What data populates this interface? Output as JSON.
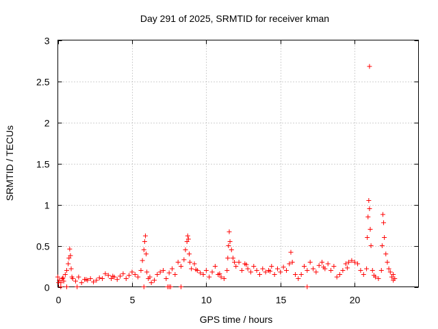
{
  "chart_data": {
    "type": "scatter",
    "title": "Day 291 of 2025, SRMTID for receiver kman",
    "xlabel": "GPS time / hours",
    "ylabel": "SRMTID / TECUs",
    "xlim": [
      0,
      24.3
    ],
    "ylim": [
      0,
      3
    ],
    "xticks": [
      0,
      5,
      10,
      15,
      20
    ],
    "xtick_labels": [
      "0",
      "5",
      "10",
      "15",
      "20"
    ],
    "yticks": [
      0,
      0.5,
      1,
      1.5,
      2,
      2.5,
      3
    ],
    "ytick_labels": [
      "0",
      "0.5",
      "1",
      "1.5",
      "2",
      "2.5",
      "3"
    ],
    "grid": true,
    "marker": "plus",
    "series": [
      {
        "name": "SRMTID",
        "color": "#ff0000",
        "x": [
          0.0,
          0.1,
          0.2,
          0.3,
          0.4,
          0.5,
          0.6,
          0.7,
          0.75,
          0.8,
          0.85,
          0.9,
          0.95,
          1.0,
          1.2,
          1.4,
          1.6,
          1.8,
          2.0,
          2.2,
          2.4,
          2.6,
          2.8,
          3.0,
          3.2,
          3.4,
          3.6,
          3.8,
          4.0,
          4.2,
          4.4,
          4.6,
          4.8,
          5.0,
          5.2,
          5.4,
          5.6,
          5.7,
          5.8,
          5.85,
          5.9,
          5.95,
          6.0,
          6.1,
          6.3,
          6.5,
          6.7,
          6.9,
          7.1,
          7.3,
          7.5,
          7.7,
          7.9,
          8.1,
          8.3,
          8.5,
          8.6,
          8.7,
          8.75,
          8.8,
          8.85,
          8.9,
          9.0,
          9.2,
          9.4,
          9.6,
          9.8,
          10.0,
          10.2,
          10.4,
          10.6,
          10.8,
          11.0,
          11.2,
          11.4,
          11.45,
          11.5,
          11.55,
          11.6,
          11.7,
          11.8,
          11.9,
          12.0,
          12.2,
          12.4,
          12.6,
          12.8,
          13.0,
          13.2,
          13.4,
          13.6,
          13.8,
          14.0,
          14.2,
          14.4,
          14.6,
          14.8,
          15.0,
          15.2,
          15.4,
          15.6,
          15.7,
          15.8,
          16.0,
          16.2,
          16.4,
          16.6,
          16.8,
          17.0,
          17.2,
          17.4,
          17.6,
          17.8,
          18.0,
          18.2,
          18.4,
          18.6,
          18.8,
          19.0,
          19.2,
          19.4,
          19.6,
          19.8,
          20.0,
          20.2,
          20.4,
          20.6,
          20.8,
          20.85,
          20.9,
          20.95,
          21.0,
          21.05,
          21.1,
          21.2,
          21.4,
          21.6,
          21.8,
          21.85,
          21.9,
          21.95,
          22.0,
          22.1,
          22.2,
          22.3,
          22.4,
          22.5,
          22.6,
          22.7,
          21.0,
          0.2,
          0.6,
          1.3,
          5.8,
          7.4,
          7.5,
          7.6,
          8.3,
          16.8,
          0.05,
          0.35,
          1.9,
          3.7,
          6.2,
          9.3,
          10.9,
          12.7,
          14.3,
          17.9,
          19.5,
          21.3,
          22.6
        ],
        "y": [
          0.12,
          0.08,
          0.05,
          0.1,
          0.07,
          0.15,
          0.2,
          0.28,
          0.35,
          0.46,
          0.38,
          0.22,
          0.12,
          0.1,
          0.07,
          0.12,
          0.05,
          0.09,
          0.08,
          0.1,
          0.06,
          0.08,
          0.11,
          0.1,
          0.16,
          0.14,
          0.1,
          0.12,
          0.09,
          0.13,
          0.16,
          0.1,
          0.14,
          0.18,
          0.15,
          0.12,
          0.2,
          0.32,
          0.45,
          0.55,
          0.62,
          0.4,
          0.18,
          0.1,
          0.05,
          0.08,
          0.15,
          0.18,
          0.2,
          0.1,
          0.17,
          0.22,
          0.15,
          0.3,
          0.25,
          0.33,
          0.45,
          0.55,
          0.62,
          0.58,
          0.4,
          0.3,
          0.22,
          0.28,
          0.2,
          0.17,
          0.15,
          0.2,
          0.12,
          0.18,
          0.25,
          0.15,
          0.12,
          0.1,
          0.2,
          0.35,
          0.5,
          0.67,
          0.55,
          0.45,
          0.35,
          0.3,
          0.25,
          0.3,
          0.2,
          0.28,
          0.22,
          0.18,
          0.25,
          0.2,
          0.15,
          0.22,
          0.18,
          0.2,
          0.25,
          0.15,
          0.22,
          0.18,
          0.24,
          0.2,
          0.28,
          0.42,
          0.3,
          0.15,
          0.1,
          0.15,
          0.25,
          0.2,
          0.3,
          0.22,
          0.18,
          0.26,
          0.3,
          0.22,
          0.28,
          0.2,
          0.25,
          0.12,
          0.15,
          0.2,
          0.28,
          0.3,
          0.32,
          0.3,
          0.28,
          0.2,
          0.15,
          0.22,
          0.6,
          0.85,
          1.05,
          0.95,
          0.7,
          0.5,
          0.2,
          0.12,
          0.1,
          0.2,
          0.5,
          0.88,
          0.78,
          0.6,
          0.4,
          0.3,
          0.22,
          0.18,
          0.12,
          0.15,
          0.1,
          2.68,
          0.0,
          0.0,
          0.0,
          0.0,
          0.0,
          0.0,
          0.0,
          0.0,
          0.0,
          0.05,
          0.11,
          0.09,
          0.13,
          0.12,
          0.21,
          0.16,
          0.27,
          0.19,
          0.24,
          0.23,
          0.14,
          0.08
        ]
      }
    ]
  }
}
